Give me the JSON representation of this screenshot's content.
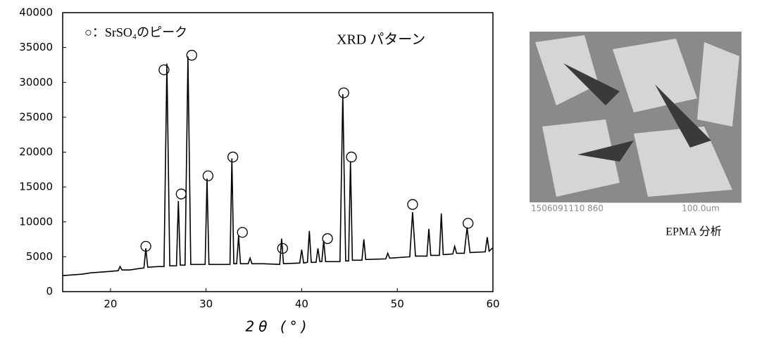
{
  "chart_data": {
    "type": "line",
    "x": [
      15,
      16,
      17,
      18,
      19,
      20,
      20.8,
      21,
      21.2,
      22,
      23,
      23.5,
      23.7,
      23.9,
      25,
      25.6,
      25.9,
      26.2,
      26.9,
      27.1,
      27.3,
      27.8,
      28.1,
      28.4,
      29.9,
      30.1,
      30.3,
      32.5,
      32.7,
      32.9,
      33.2,
      33.4,
      33.6,
      34.4,
      34.6,
      34.8,
      36,
      37.7,
      37.9,
      38.1,
      39.8,
      40,
      40.2,
      40.6,
      40.8,
      41,
      41.5,
      41.7,
      41.9,
      42.1,
      42.3,
      42.5,
      44.0,
      44.3,
      44.6,
      44.9,
      45.1,
      45.3,
      46.3,
      46.5,
      46.7,
      48.8,
      49.0,
      49.2,
      51.3,
      51.6,
      51.9,
      53.1,
      53.3,
      53.5,
      54.4,
      54.6,
      54.8,
      55.8,
      56.0,
      56.2,
      57.0,
      57.3,
      57.6,
      59.2,
      59.4,
      59.6,
      60
    ],
    "values": [
      2300,
      2400,
      2500,
      2700,
      2800,
      2900,
      3000,
      3600,
      3100,
      3100,
      3300,
      3400,
      6200,
      3500,
      3600,
      3600,
      32700,
      3700,
      3700,
      13000,
      3800,
      3800,
      33700,
      3900,
      3900,
      16200,
      3900,
      3900,
      19100,
      4000,
      4000,
      8000,
      4000,
      4000,
      4800,
      4000,
      4000,
      3900,
      7600,
      4000,
      4100,
      6000,
      4100,
      4200,
      8700,
      4200,
      4200,
      6200,
      4300,
      4300,
      7300,
      4300,
      4300,
      28300,
      4400,
      4400,
      18700,
      4500,
      4500,
      7500,
      4600,
      4700,
      5500,
      4800,
      5000,
      11400,
      5100,
      5100,
      9000,
      5200,
      5200,
      11200,
      5300,
      5400,
      6500,
      5500,
      5500,
      9200,
      5600,
      5700,
      7800,
      5800,
      6300
    ],
    "color": "#000000",
    "markers": {
      "x": [
        23.7,
        25.6,
        27.4,
        28.5,
        30.2,
        32.8,
        33.8,
        38.0,
        42.7,
        44.4,
        45.2,
        51.6,
        57.4
      ],
      "y": [
        6500,
        31800,
        14000,
        33900,
        16600,
        19300,
        8500,
        6200,
        7600,
        28500,
        19300,
        12500,
        9800
      ]
    },
    "xlim": [
      15,
      60
    ],
    "xticks": [
      20,
      30,
      40,
      50,
      60
    ],
    "ylim": [
      0,
      40000
    ],
    "yticks": [
      0,
      5000,
      10000,
      15000,
      20000,
      25000,
      30000,
      35000,
      40000
    ],
    "xlabel": "2θ (°)",
    "annotations": [
      "○：SrSO₄のピーク",
      "XRD パターン"
    ]
  },
  "image": {
    "texts": [
      "1506091110 860",
      "100.0um"
    ],
    "caption": "EPMA 分析"
  }
}
